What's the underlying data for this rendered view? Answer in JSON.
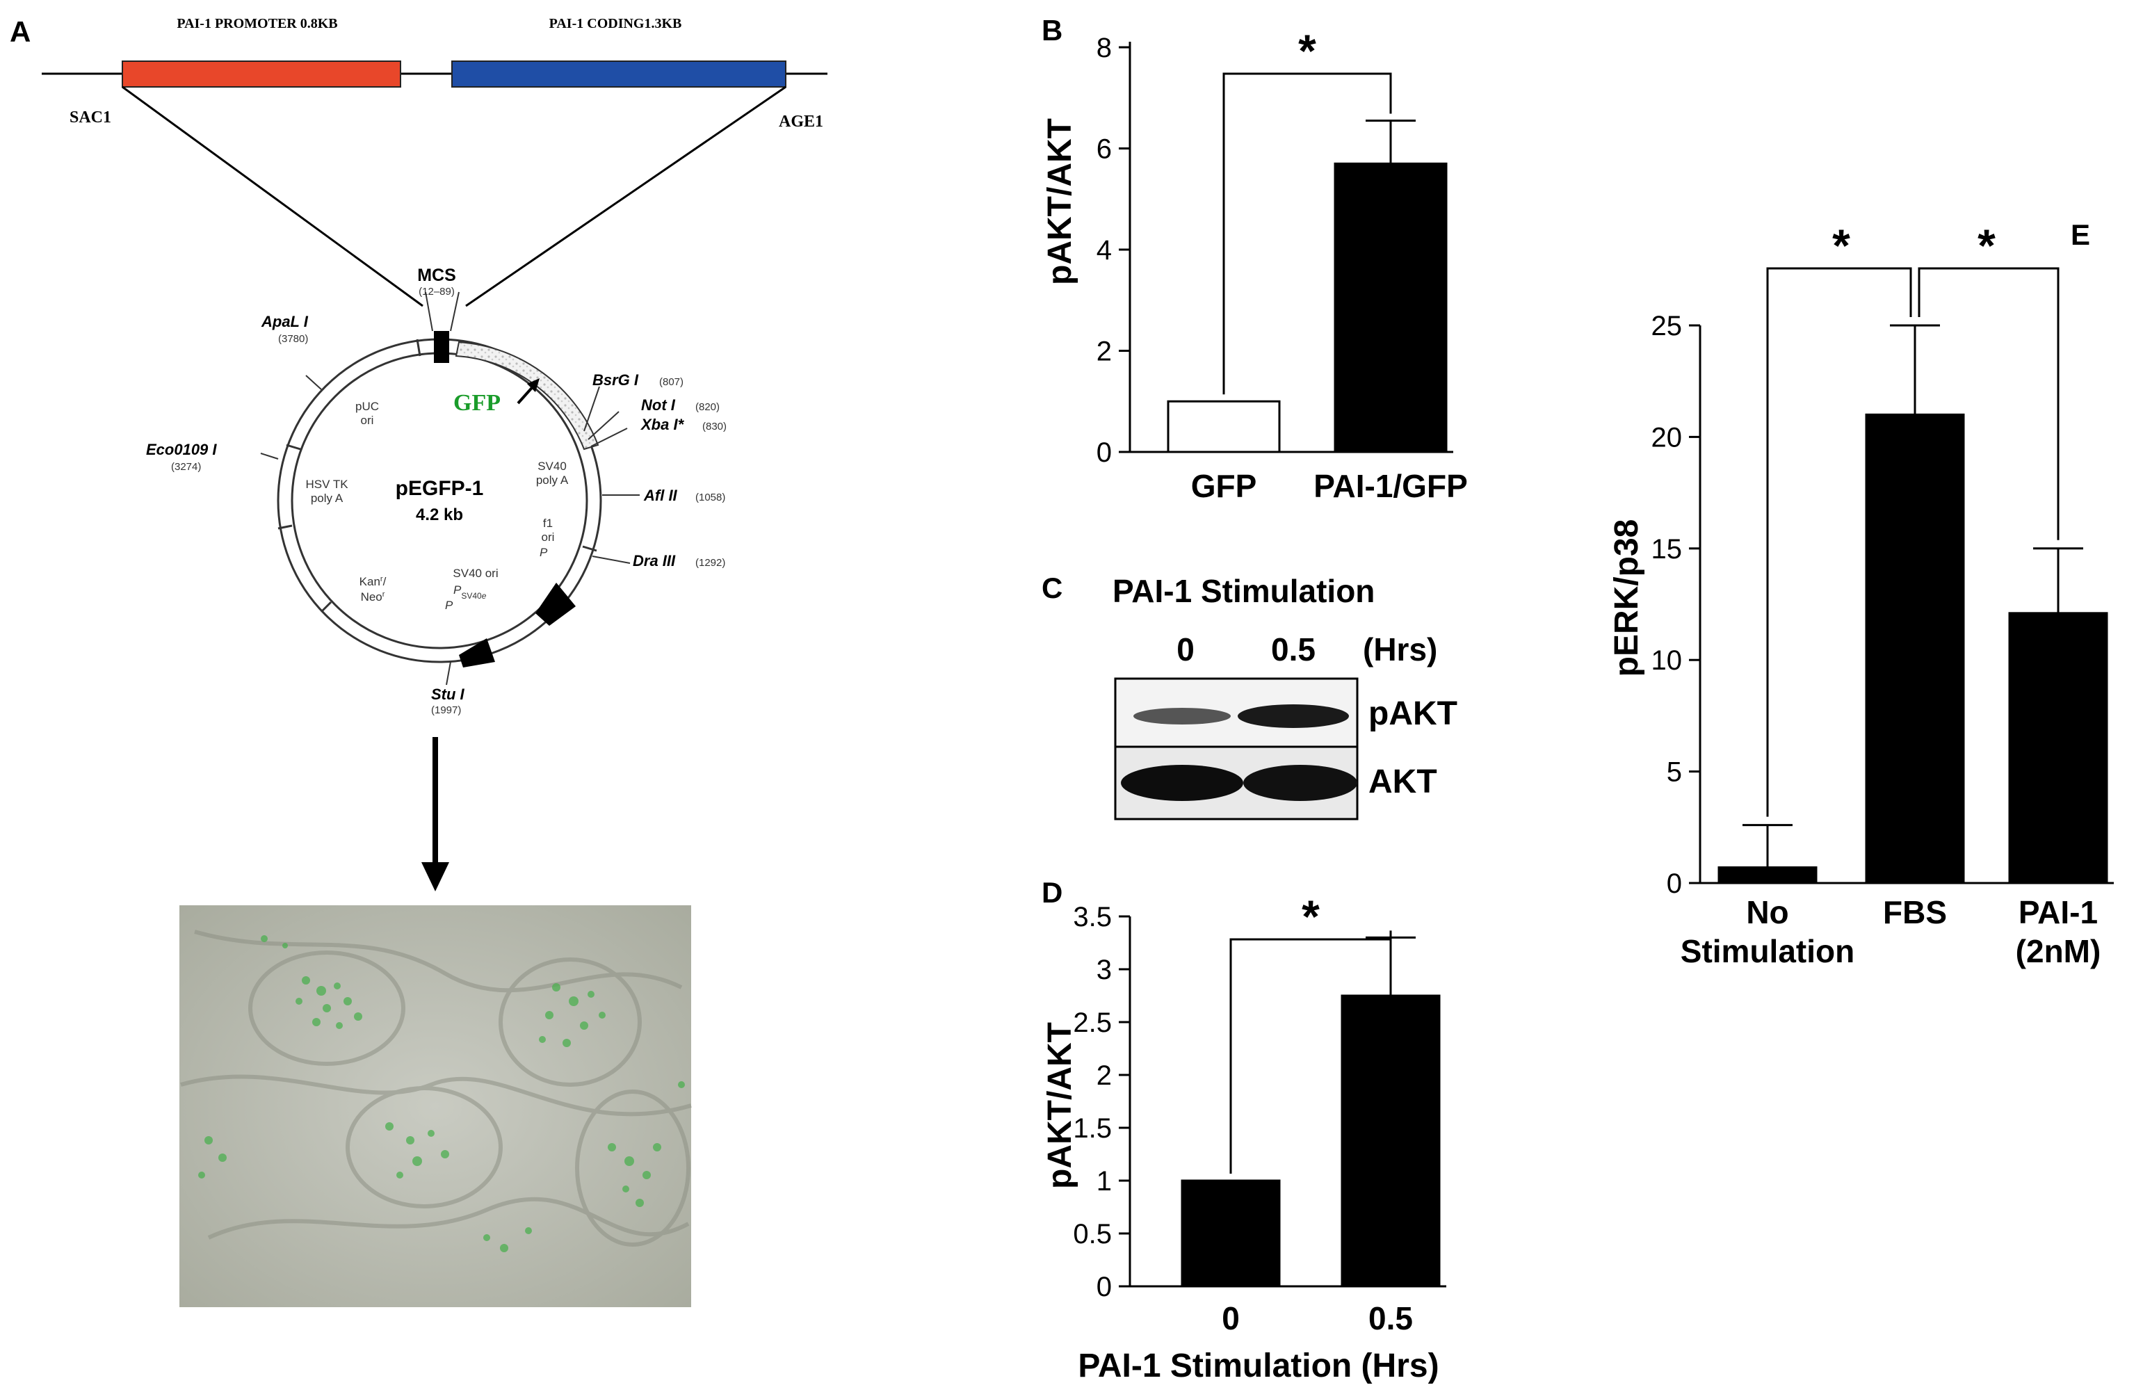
{
  "panel_a": {
    "letter": "A",
    "promoter_label": "PAI-1 PROMOTER 0.8KB",
    "coding_label": "PAI-1 CODING1.3KB",
    "site_left": "SAC1",
    "site_right": "AGE1",
    "plasmid_name": "pEGFP-1",
    "plasmid_size": "4.2 kb",
    "gfp_label": "GFP",
    "mcs_label": "MCS",
    "mcs_range": "(12–89)",
    "colors": {
      "promoter": "#e8472a",
      "coding": "#1f4ea6",
      "gfp": "#1a9c2a"
    },
    "sites": [
      {
        "name": "ApaL I",
        "pos": "(3780)"
      },
      {
        "name": "Eco0109 I",
        "pos": "(3274)"
      },
      {
        "name": "BsrG I",
        "pos": "(807)"
      },
      {
        "name": "Not I",
        "pos": "(820)"
      },
      {
        "name": "Xba I*",
        "pos": "(830)"
      },
      {
        "name": "Afl II",
        "pos": "(1058)"
      },
      {
        "name": "Dra III",
        "pos": "(1292)"
      },
      {
        "name": "Stu I",
        "pos": "(1997)"
      }
    ],
    "inner": {
      "puc": "pUC",
      "ori": "ori",
      "hsv1": "HSV TK",
      "hsv2": "poly A",
      "kan1": "Kan",
      "kan_sup": "r",
      "kan2": "/",
      "neo1": "Neo",
      "neo_sup": "r",
      "sv40a": "SV40",
      "sv40b": "poly A",
      "f1a": "f1",
      "f1b": "ori",
      "p1": "P",
      "svori": "SV40 ori",
      "psv": "P",
      "psv_sub": "SV40",
      "psv_e": "e",
      "p2": "P"
    }
  },
  "chart_data": [
    {
      "panel": "B",
      "type": "bar",
      "categories": [
        "GFP",
        "PAI-1/GFP"
      ],
      "values": [
        1.0,
        5.7
      ],
      "errors": [
        0,
        0.85
      ],
      "fills": [
        "#ffffff",
        "#000000"
      ],
      "ylabel": "pAKT/AKT",
      "ylim": [
        0,
        8
      ],
      "yticks": [
        "0",
        "2",
        "4",
        "6",
        "8"
      ],
      "significance": "*"
    },
    {
      "panel": "D",
      "type": "bar",
      "categories": [
        "0",
        "0.5"
      ],
      "values": [
        1.0,
        2.75
      ],
      "errors": [
        0,
        0.55
      ],
      "ylabel": "pAKT/AKT",
      "xlabel": "PAI-1 Stimulation (Hrs)",
      "ylim": [
        0,
        3.5
      ],
      "yticks": [
        "0",
        "0.5",
        "1",
        "1.5",
        "2",
        "2.5",
        "3",
        "3.5"
      ],
      "significance": "*"
    },
    {
      "panel": "E",
      "type": "bar",
      "categories": [
        [
          "No",
          "Stimulation"
        ],
        [
          "FBS"
        ],
        [
          "PAI-1",
          "(2nM)"
        ]
      ],
      "values": [
        0.7,
        21.0,
        12.1
      ],
      "errors": [
        1.9,
        4.0,
        2.9
      ],
      "ylabel": "pERK/p38",
      "ylim": [
        0,
        25
      ],
      "yticks": [
        "0",
        "5",
        "10",
        "15",
        "20",
        "25"
      ],
      "significance": [
        "*",
        "*"
      ]
    }
  ],
  "panel_c": {
    "letter": "C",
    "title": "PAI-1 Stimulation",
    "lanes": [
      "0",
      "0.5"
    ],
    "unit": "(Hrs)",
    "rows": [
      "pAKT",
      "AKT"
    ]
  },
  "letters": {
    "b": "B",
    "d": "D",
    "e": "E"
  }
}
